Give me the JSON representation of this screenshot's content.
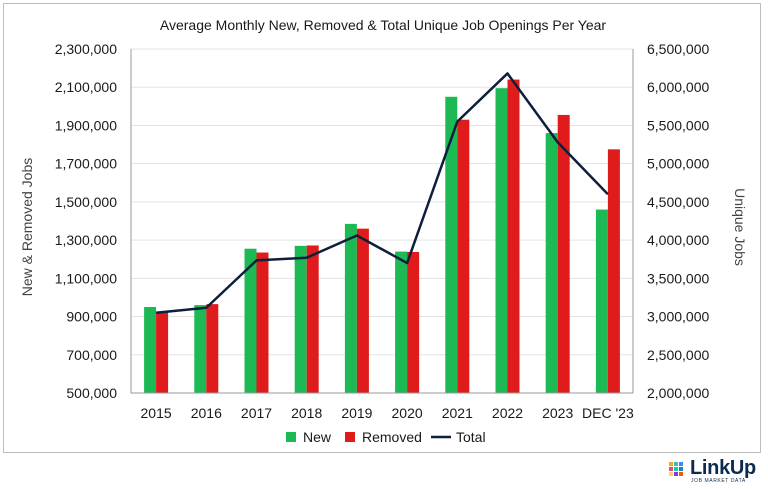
{
  "chart_data": {
    "type": "bar",
    "title": "Average Monthly New, Removed & Total Unique Job Openings Per Year",
    "categories": [
      "2015",
      "2016",
      "2017",
      "2018",
      "2019",
      "2020",
      "2021",
      "2022",
      "2023",
      "DEC '23"
    ],
    "series": [
      {
        "name": "New",
        "type": "bar",
        "axis": "left",
        "color": "#1db954",
        "values": [
          950000,
          960000,
          1255000,
          1270000,
          1385000,
          1240000,
          2050000,
          2095000,
          1860000,
          1460000
        ]
      },
      {
        "name": "Removed",
        "type": "bar",
        "axis": "left",
        "color": "#e01b1b",
        "values": [
          920000,
          965000,
          1235000,
          1272000,
          1360000,
          1238000,
          1930000,
          2140000,
          1955000,
          1775000
        ]
      },
      {
        "name": "Total",
        "type": "line",
        "axis": "right",
        "color": "#0d1f3c",
        "values": [
          3050000,
          3115000,
          3735000,
          3770000,
          4060000,
          3700000,
          5550000,
          6180000,
          5280000,
          4600000
        ]
      }
    ],
    "ylabel": "New & Removed Jobs",
    "ylabel_right": "Unique Jobs",
    "ylim": [
      500000,
      2300000
    ],
    "ylim_right": [
      2000000,
      6500000
    ],
    "yticks": [
      "500,000",
      "700,000",
      "900,000",
      "1,100,000",
      "1,300,000",
      "1,500,000",
      "1,700,000",
      "1,900,000",
      "2,100,000",
      "2,300,000"
    ],
    "yticks_right": [
      "2,000,000",
      "2,500,000",
      "3,000,000",
      "3,500,000",
      "4,000,000",
      "4,500,000",
      "5,000,000",
      "5,500,000",
      "6,000,000",
      "6,500,000"
    ],
    "grid": true,
    "legend_position": "bottom"
  },
  "logo": {
    "name": "LinkUp",
    "tagline": "JOB MARKET DATA"
  }
}
